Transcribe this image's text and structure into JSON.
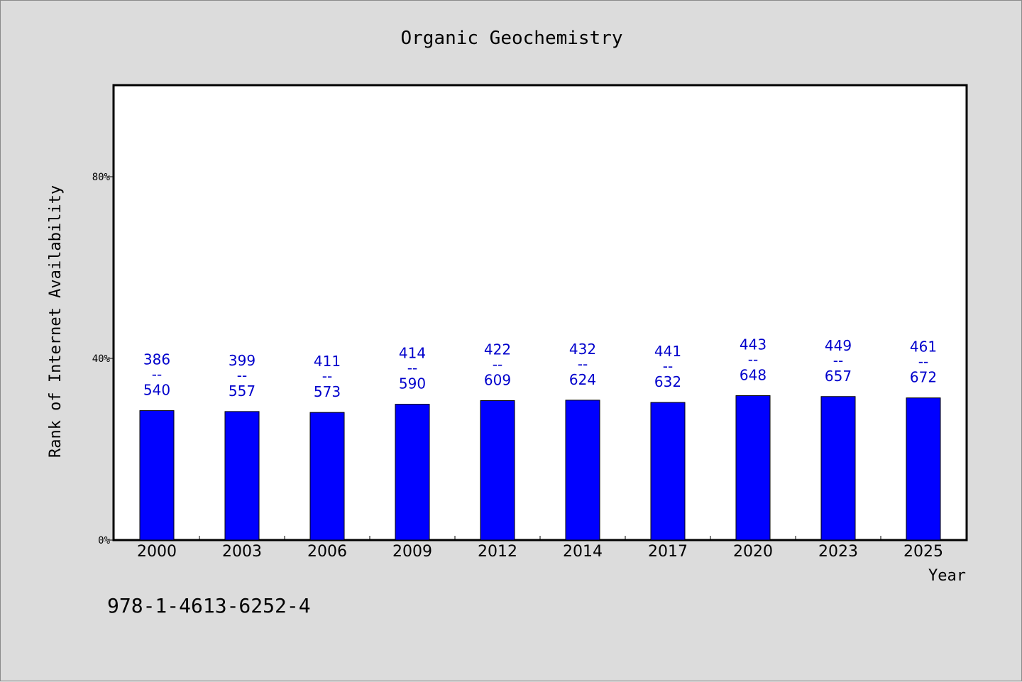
{
  "chart_data": {
    "type": "bar",
    "title": "Organic Geochemistry",
    "xlabel": "Year",
    "ylabel": "Rank of Internet Availability",
    "categories": [
      "2000",
      "2003",
      "2006",
      "2009",
      "2012",
      "2014",
      "2017",
      "2020",
      "2023",
      "2025"
    ],
    "values": [
      28.5,
      28.3,
      28.1,
      29.9,
      30.7,
      30.8,
      30.3,
      31.8,
      31.6,
      31.3
    ],
    "value_unit": "%",
    "data_labels": [
      {
        "top": "386",
        "sep": "--",
        "bottom": "540"
      },
      {
        "top": "399",
        "sep": "--",
        "bottom": "557"
      },
      {
        "top": "411",
        "sep": "--",
        "bottom": "573"
      },
      {
        "top": "414",
        "sep": "--",
        "bottom": "590"
      },
      {
        "top": "422",
        "sep": "--",
        "bottom": "609"
      },
      {
        "top": "432",
        "sep": "--",
        "bottom": "624"
      },
      {
        "top": "441",
        "sep": "--",
        "bottom": "632"
      },
      {
        "top": "443",
        "sep": "--",
        "bottom": "648"
      },
      {
        "top": "449",
        "sep": "--",
        "bottom": "657"
      },
      {
        "top": "461",
        "sep": "--",
        "bottom": "672"
      }
    ],
    "ylim": [
      0,
      100
    ],
    "yticks": [
      0,
      40,
      80
    ],
    "ytick_labels": [
      "0%",
      "40%",
      "80%"
    ],
    "grid": false,
    "legend": "none",
    "bar_color": "#0000ff",
    "label_color": "#0000cc",
    "plot_background": "#ffffff",
    "page_background": "#dcdcdc"
  },
  "footnote": "978-1-4613-6252-4"
}
